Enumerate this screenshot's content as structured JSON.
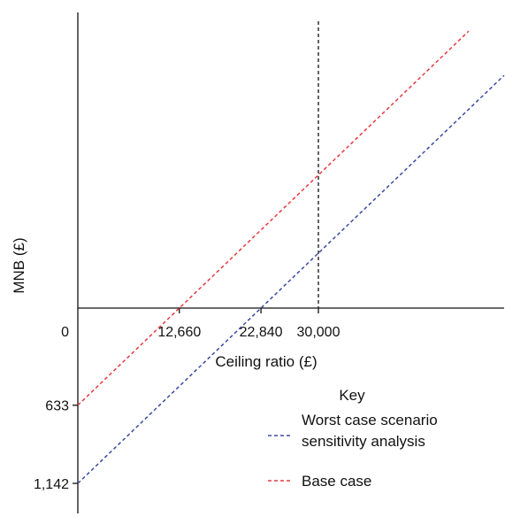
{
  "chart_data": {
    "type": "line",
    "title": "",
    "xlabel": "Ceiling ratio (£)",
    "ylabel": "MNB (£)",
    "x_ticks": [
      {
        "value": 12660,
        "label": "12,660"
      },
      {
        "value": 22840,
        "label": "22,840"
      },
      {
        "value": 30000,
        "label": "30,000"
      }
    ],
    "y_ticks": [
      {
        "value": 0,
        "label": "0"
      },
      {
        "value": -633,
        "label": "633"
      },
      {
        "value": -1142,
        "label": "1,142"
      }
    ],
    "xlim": [
      0,
      48000
    ],
    "ylim": [
      -1300,
      1600
    ],
    "reference_line": {
      "x": 30000,
      "style": "dashed",
      "color": "#222222"
    },
    "series": [
      {
        "name": "Worst case scenario sensitivity analysis",
        "color": "#3a4aa0",
        "style": "dashed",
        "x": [
          0,
          22840
        ],
        "y": [
          -1142,
          0
        ]
      },
      {
        "name": "Base case",
        "color": "#e8393f",
        "style": "dashed",
        "x": [
          0,
          12660
        ],
        "y": [
          -633,
          0
        ]
      }
    ],
    "legend": {
      "title": "Key",
      "placement": "bottom-right"
    },
    "grid": false
  }
}
